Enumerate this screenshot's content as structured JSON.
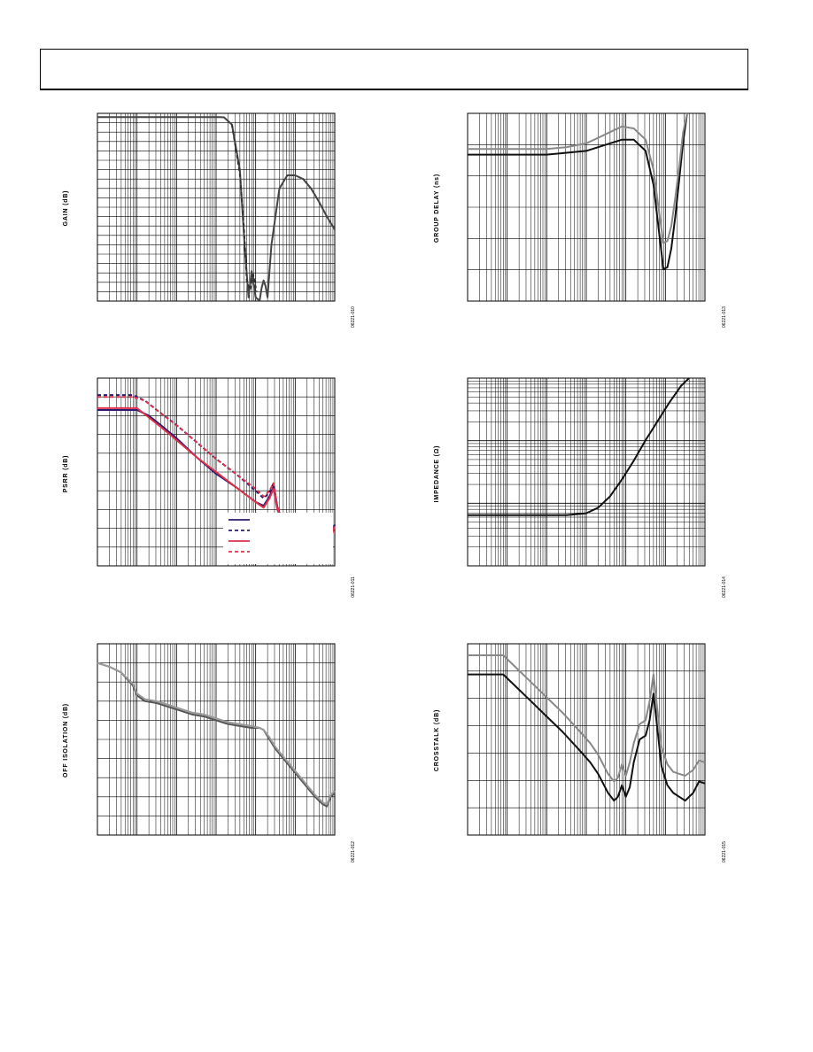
{
  "page": {
    "header": ""
  },
  "charts": [
    {
      "id": "gain",
      "ylabel": "GAIN (dB)",
      "fig_id": "06221-010",
      "x_decades": 6,
      "y_divisions": 20,
      "legend": false
    },
    {
      "id": "group-delay",
      "ylabel": "GROUP DELAY (ns)",
      "fig_id": "06221-013",
      "x_decades": 6,
      "y_divisions": 6,
      "legend": false
    },
    {
      "id": "psrr",
      "ylabel": "PSRR (dB)",
      "fig_id": "06221-011",
      "x_decades": 6,
      "y_divisions": 10,
      "legend": true
    },
    {
      "id": "impedance",
      "ylabel": "IMPEDANCE (Ω)",
      "fig_id": "06221-014",
      "x_decades": 6,
      "y_divisions": 3,
      "y_log": true,
      "legend": false
    },
    {
      "id": "off-isolation",
      "ylabel": "OFF ISOLATION (dB)",
      "fig_id": "06221-012",
      "x_decades": 6,
      "y_divisions": 10,
      "legend": false
    },
    {
      "id": "crosstalk",
      "ylabel": "CROSSTALK (dB)",
      "fig_id": "06221-015",
      "x_decades": 6,
      "y_divisions": 7,
      "legend": false
    }
  ],
  "chart_data": [
    {
      "type": "line",
      "title": "",
      "ylabel": "GAIN (dB)",
      "xlabel": "",
      "x_scale": "log",
      "x_range_decades": [
        0,
        6
      ],
      "y_range_norm": [
        0,
        1
      ],
      "grid": true,
      "series": [
        {
          "color": "#444444",
          "dash": "",
          "x": [
            0,
            1,
            2,
            2.5,
            2.8,
            3.0,
            3.1,
            3.2,
            3.4,
            3.6,
            3.72,
            3.82,
            3.9,
            4.0,
            4.1,
            4.15,
            4.2,
            4.25,
            4.3,
            4.4,
            4.6,
            4.8,
            5.0,
            5.2,
            5.4,
            5.6,
            5.8,
            6.0
          ],
          "y": [
            0.02,
            0.02,
            0.02,
            0.02,
            0.02,
            0.02,
            0.02,
            0.021,
            0.06,
            0.3,
            0.7,
            0.98,
            0.84,
            0.98,
            0.999,
            0.93,
            0.89,
            0.92,
            0.98,
            0.7,
            0.4,
            0.33,
            0.33,
            0.35,
            0.4,
            0.47,
            0.55,
            0.62
          ]
        },
        {
          "color": "#333333",
          "dash": "4,3",
          "x": [
            3.4,
            3.6,
            3.7,
            3.78,
            3.86,
            3.94,
            4.02
          ],
          "y": [
            0.06,
            0.32,
            0.6,
            0.9,
            0.94,
            0.86,
            0.95
          ]
        }
      ]
    },
    {
      "type": "line",
      "title": "",
      "ylabel": "GROUP DELAY (ns)",
      "xlabel": "",
      "x_scale": "log",
      "x_range_decades": [
        0,
        6
      ],
      "y_range_norm": [
        0,
        1
      ],
      "grid": true,
      "series": [
        {
          "color": "#111111",
          "dash": "",
          "x": [
            0,
            1,
            2,
            2.5,
            3.0,
            3.3,
            3.6,
            3.9,
            4.2,
            4.5,
            4.7,
            4.85,
            4.95,
            5.05,
            5.15,
            5.25,
            5.35,
            5.45,
            5.55
          ],
          "y": [
            0.22,
            0.22,
            0.22,
            0.21,
            0.2,
            0.18,
            0.16,
            0.14,
            0.14,
            0.2,
            0.38,
            0.65,
            0.83,
            0.82,
            0.72,
            0.55,
            0.35,
            0.15,
            0.0
          ]
        },
        {
          "color": "#888888",
          "dash": "",
          "x": [
            0,
            1,
            2,
            2.5,
            3.0,
            3.3,
            3.6,
            3.9,
            4.2,
            4.5,
            4.7,
            4.85,
            4.95,
            5.05,
            5.15,
            5.25,
            5.35,
            5.45,
            5.55
          ],
          "y": [
            0.19,
            0.19,
            0.19,
            0.18,
            0.16,
            0.13,
            0.1,
            0.07,
            0.08,
            0.14,
            0.3,
            0.54,
            0.69,
            0.68,
            0.6,
            0.45,
            0.28,
            0.1,
            0.0
          ]
        }
      ]
    },
    {
      "type": "line",
      "title": "",
      "ylabel": "PSRR (dB)",
      "xlabel": "",
      "x_scale": "log",
      "x_range_decades": [
        0,
        6
      ],
      "y_range_norm": [
        0,
        1
      ],
      "grid": true,
      "legend_placement": "bottom-right",
      "series": [
        {
          "color": "#2e1a6e",
          "dash": "",
          "x": [
            0,
            0.5,
            1.0,
            1.3,
            1.6,
            2.0,
            2.5,
            3.0,
            3.5,
            4.0,
            4.2,
            4.35,
            4.45,
            4.55,
            4.65,
            4.8,
            5.0,
            5.2,
            5.4,
            5.6,
            5.75,
            5.9,
            6.0
          ],
          "y": [
            0.17,
            0.17,
            0.17,
            0.2,
            0.25,
            0.32,
            0.42,
            0.51,
            0.58,
            0.66,
            0.68,
            0.63,
            0.58,
            0.7,
            0.75,
            0.73,
            0.76,
            0.8,
            0.84,
            0.88,
            0.9,
            0.85,
            0.78
          ]
        },
        {
          "color": "#2e1a6e",
          "dash": "4,3",
          "x": [
            0,
            0.5,
            0.9,
            1.2,
            1.5,
            2.0,
            2.5,
            3.0,
            3.5,
            4.0,
            4.2,
            4.35,
            4.45,
            4.55,
            4.65,
            4.8,
            5.0,
            5.2,
            5.4,
            5.6,
            5.75,
            5.9,
            6.0
          ],
          "y": [
            0.09,
            0.09,
            0.09,
            0.12,
            0.17,
            0.25,
            0.34,
            0.43,
            0.51,
            0.6,
            0.64,
            0.61,
            0.56,
            0.69,
            0.74,
            0.72,
            0.75,
            0.8,
            0.84,
            0.88,
            0.9,
            0.85,
            0.78
          ]
        },
        {
          "color": "#e0304a",
          "dash": "",
          "x": [
            0,
            0.5,
            1.0,
            1.3,
            1.6,
            2.0,
            2.5,
            3.0,
            3.5,
            4.0,
            4.2,
            4.35,
            4.45,
            4.55,
            4.65,
            4.8,
            5.0,
            5.2,
            5.4,
            5.6,
            5.75,
            5.9,
            6.0
          ],
          "y": [
            0.16,
            0.16,
            0.16,
            0.21,
            0.26,
            0.33,
            0.42,
            0.5,
            0.58,
            0.66,
            0.69,
            0.64,
            0.59,
            0.7,
            0.74,
            0.73,
            0.76,
            0.8,
            0.84,
            0.88,
            0.9,
            0.85,
            0.79
          ]
        },
        {
          "color": "#e0304a",
          "dash": "4,3",
          "x": [
            0,
            0.5,
            0.9,
            1.2,
            1.5,
            2.0,
            2.5,
            3.0,
            3.5,
            4.0,
            4.2,
            4.35,
            4.45,
            4.55,
            4.65,
            4.8,
            5.0,
            5.2,
            5.4,
            5.6,
            5.75,
            5.9,
            6.0
          ],
          "y": [
            0.1,
            0.1,
            0.1,
            0.12,
            0.17,
            0.25,
            0.34,
            0.43,
            0.51,
            0.59,
            0.63,
            0.6,
            0.56,
            0.68,
            0.74,
            0.72,
            0.75,
            0.8,
            0.84,
            0.88,
            0.9,
            0.85,
            0.78
          ]
        }
      ]
    },
    {
      "type": "line",
      "title": "",
      "ylabel": "IMPEDANCE (Ω)",
      "xlabel": "",
      "x_scale": "log",
      "y_scale": "log",
      "x_range_decades": [
        0,
        6
      ],
      "y_range_norm": [
        0,
        1
      ],
      "grid": true,
      "series": [
        {
          "color": "#111111",
          "dash": "",
          "x": [
            0,
            1,
            2,
            2.5,
            3.0,
            3.3,
            3.6,
            3.9,
            4.2,
            4.5,
            4.8,
            5.1,
            5.4,
            5.6
          ],
          "y": [
            0.73,
            0.73,
            0.73,
            0.73,
            0.72,
            0.69,
            0.63,
            0.54,
            0.44,
            0.33,
            0.23,
            0.13,
            0.04,
            0.0
          ]
        }
      ]
    },
    {
      "type": "line",
      "title": "",
      "ylabel": "OFF ISOLATION (dB)",
      "xlabel": "",
      "x_scale": "log",
      "x_range_decades": [
        0,
        6
      ],
      "y_range_norm": [
        0,
        1
      ],
      "grid": true,
      "series": [
        {
          "color": "#555555",
          "dash": "",
          "x": [
            0,
            0.3,
            0.6,
            0.9,
            1.0,
            1.2,
            1.5,
            1.8,
            2.1,
            2.4,
            2.7,
            3.0,
            3.3,
            3.6,
            3.9,
            4.1,
            4.2,
            4.35,
            4.5,
            4.7,
            4.9,
            5.1,
            5.3,
            5.5,
            5.7,
            5.8,
            5.9,
            6.0
          ],
          "y": [
            0.1,
            0.12,
            0.15,
            0.22,
            0.27,
            0.3,
            0.31,
            0.33,
            0.35,
            0.37,
            0.38,
            0.4,
            0.42,
            0.43,
            0.44,
            0.44,
            0.45,
            0.5,
            0.55,
            0.6,
            0.65,
            0.7,
            0.75,
            0.8,
            0.84,
            0.85,
            0.8,
            0.78
          ]
        },
        {
          "color": "#999999",
          "dash": "",
          "x": [
            0,
            0.3,
            0.6,
            0.9,
            1.0,
            1.2,
            1.5,
            1.8,
            2.1,
            2.4,
            2.7,
            3.0,
            3.3,
            3.6,
            3.9,
            4.1,
            4.2,
            4.35,
            4.5,
            4.7,
            4.9,
            5.1,
            5.3,
            5.5,
            5.7,
            5.8,
            5.9,
            6.0
          ],
          "y": [
            0.1,
            0.12,
            0.15,
            0.21,
            0.26,
            0.29,
            0.3,
            0.32,
            0.34,
            0.36,
            0.37,
            0.39,
            0.41,
            0.42,
            0.43,
            0.44,
            0.45,
            0.49,
            0.54,
            0.59,
            0.64,
            0.69,
            0.74,
            0.79,
            0.83,
            0.84,
            0.79,
            0.77
          ]
        }
      ]
    },
    {
      "type": "line",
      "title": "",
      "ylabel": "CROSSTALK (dB)",
      "xlabel": "",
      "x_scale": "log",
      "x_range_decades": [
        0,
        6
      ],
      "y_range_norm": [
        0,
        1
      ],
      "grid": true,
      "series": [
        {
          "color": "#111111",
          "dash": "",
          "x": [
            0,
            0.5,
            0.9,
            1.2,
            1.6,
            2.0,
            2.4,
            2.8,
            3.1,
            3.3,
            3.55,
            3.7,
            3.8,
            3.9,
            4.0,
            4.1,
            4.2,
            4.35,
            4.5,
            4.6,
            4.7,
            4.8,
            4.9,
            5.05,
            5.2,
            5.35,
            5.5,
            5.7,
            5.85,
            6.0
          ],
          "y": [
            0.16,
            0.16,
            0.16,
            0.22,
            0.3,
            0.38,
            0.46,
            0.55,
            0.62,
            0.68,
            0.78,
            0.82,
            0.8,
            0.74,
            0.8,
            0.75,
            0.62,
            0.5,
            0.48,
            0.4,
            0.26,
            0.45,
            0.64,
            0.74,
            0.78,
            0.8,
            0.82,
            0.78,
            0.72,
            0.73
          ]
        },
        {
          "color": "#888888",
          "dash": "",
          "x": [
            0,
            0.5,
            0.9,
            1.2,
            1.6,
            2.0,
            2.4,
            2.8,
            3.1,
            3.3,
            3.55,
            3.7,
            3.8,
            3.9,
            4.0,
            4.1,
            4.2,
            4.35,
            4.5,
            4.6,
            4.7,
            4.8,
            4.9,
            5.05,
            5.2,
            5.35,
            5.5,
            5.7,
            5.85,
            6.0
          ],
          "y": [
            0.06,
            0.06,
            0.06,
            0.12,
            0.2,
            0.28,
            0.36,
            0.45,
            0.52,
            0.58,
            0.68,
            0.72,
            0.7,
            0.63,
            0.69,
            0.62,
            0.52,
            0.42,
            0.4,
            0.3,
            0.16,
            0.35,
            0.54,
            0.63,
            0.67,
            0.68,
            0.69,
            0.66,
            0.61,
            0.62
          ]
        }
      ]
    }
  ]
}
